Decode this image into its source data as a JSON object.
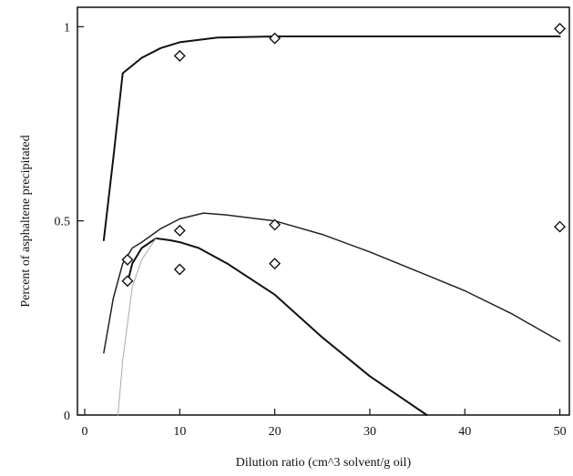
{
  "chart_data": {
    "type": "line",
    "title": "",
    "xlabel": "Dilution ratio (cm^3 solvent/g oil)",
    "ylabel": "Percent of asphaltene precipitated",
    "xlim": [
      0,
      51
    ],
    "ylim": [
      0,
      1.05
    ],
    "x_ticks": [
      0,
      10,
      20,
      30,
      40,
      50
    ],
    "y_ticks": [
      0,
      0.5,
      1
    ],
    "y_tick_labels": [
      "0",
      "0.5",
      "1"
    ],
    "grid": false,
    "legend": "none",
    "series": [
      {
        "style": "curve",
        "color": "#111111",
        "width": 2,
        "x": [
          2,
          3,
          4,
          5,
          6,
          8,
          10,
          14,
          20,
          30,
          40,
          50
        ],
        "y": [
          0.45,
          0.66,
          0.88,
          0.9,
          0.92,
          0.945,
          0.96,
          0.972,
          0.975,
          0.975,
          0.975,
          0.975
        ]
      },
      {
        "style": "curve",
        "color": "#222222",
        "width": 1.5,
        "x": [
          2,
          3,
          4,
          5,
          6,
          8,
          10,
          12.5,
          15,
          20,
          25,
          30,
          35,
          40,
          45,
          50
        ],
        "y": [
          0.16,
          0.3,
          0.39,
          0.43,
          0.445,
          0.48,
          0.505,
          0.52,
          0.515,
          0.5,
          0.465,
          0.42,
          0.37,
          0.32,
          0.26,
          0.19
        ]
      },
      {
        "style": "curve",
        "color": "#111111",
        "width": 2,
        "x": [
          4.5,
          5,
          6,
          7.5,
          9,
          10,
          12,
          15,
          20,
          25,
          30,
          33,
          36
        ],
        "y": [
          0.34,
          0.39,
          0.43,
          0.455,
          0.45,
          0.445,
          0.43,
          0.39,
          0.31,
          0.2,
          0.1,
          0.05,
          0
        ]
      },
      {
        "style": "curve",
        "color": "#aaaaaa",
        "width": 1,
        "x": [
          3.5,
          4,
          5,
          6,
          7.5
        ],
        "y": [
          0,
          0.14,
          0.33,
          0.4,
          0.455
        ]
      },
      {
        "style": "markers",
        "marker": "diamond",
        "x": [
          10,
          20,
          50
        ],
        "y": [
          0.925,
          0.97,
          0.995
        ]
      },
      {
        "style": "markers",
        "marker": "diamond",
        "x": [
          4.5,
          10,
          20,
          50
        ],
        "y": [
          0.4,
          0.475,
          0.49,
          0.485
        ]
      },
      {
        "style": "markers",
        "marker": "diamond",
        "x": [
          4.5,
          10,
          20
        ],
        "y": [
          0.345,
          0.375,
          0.39
        ]
      }
    ]
  }
}
